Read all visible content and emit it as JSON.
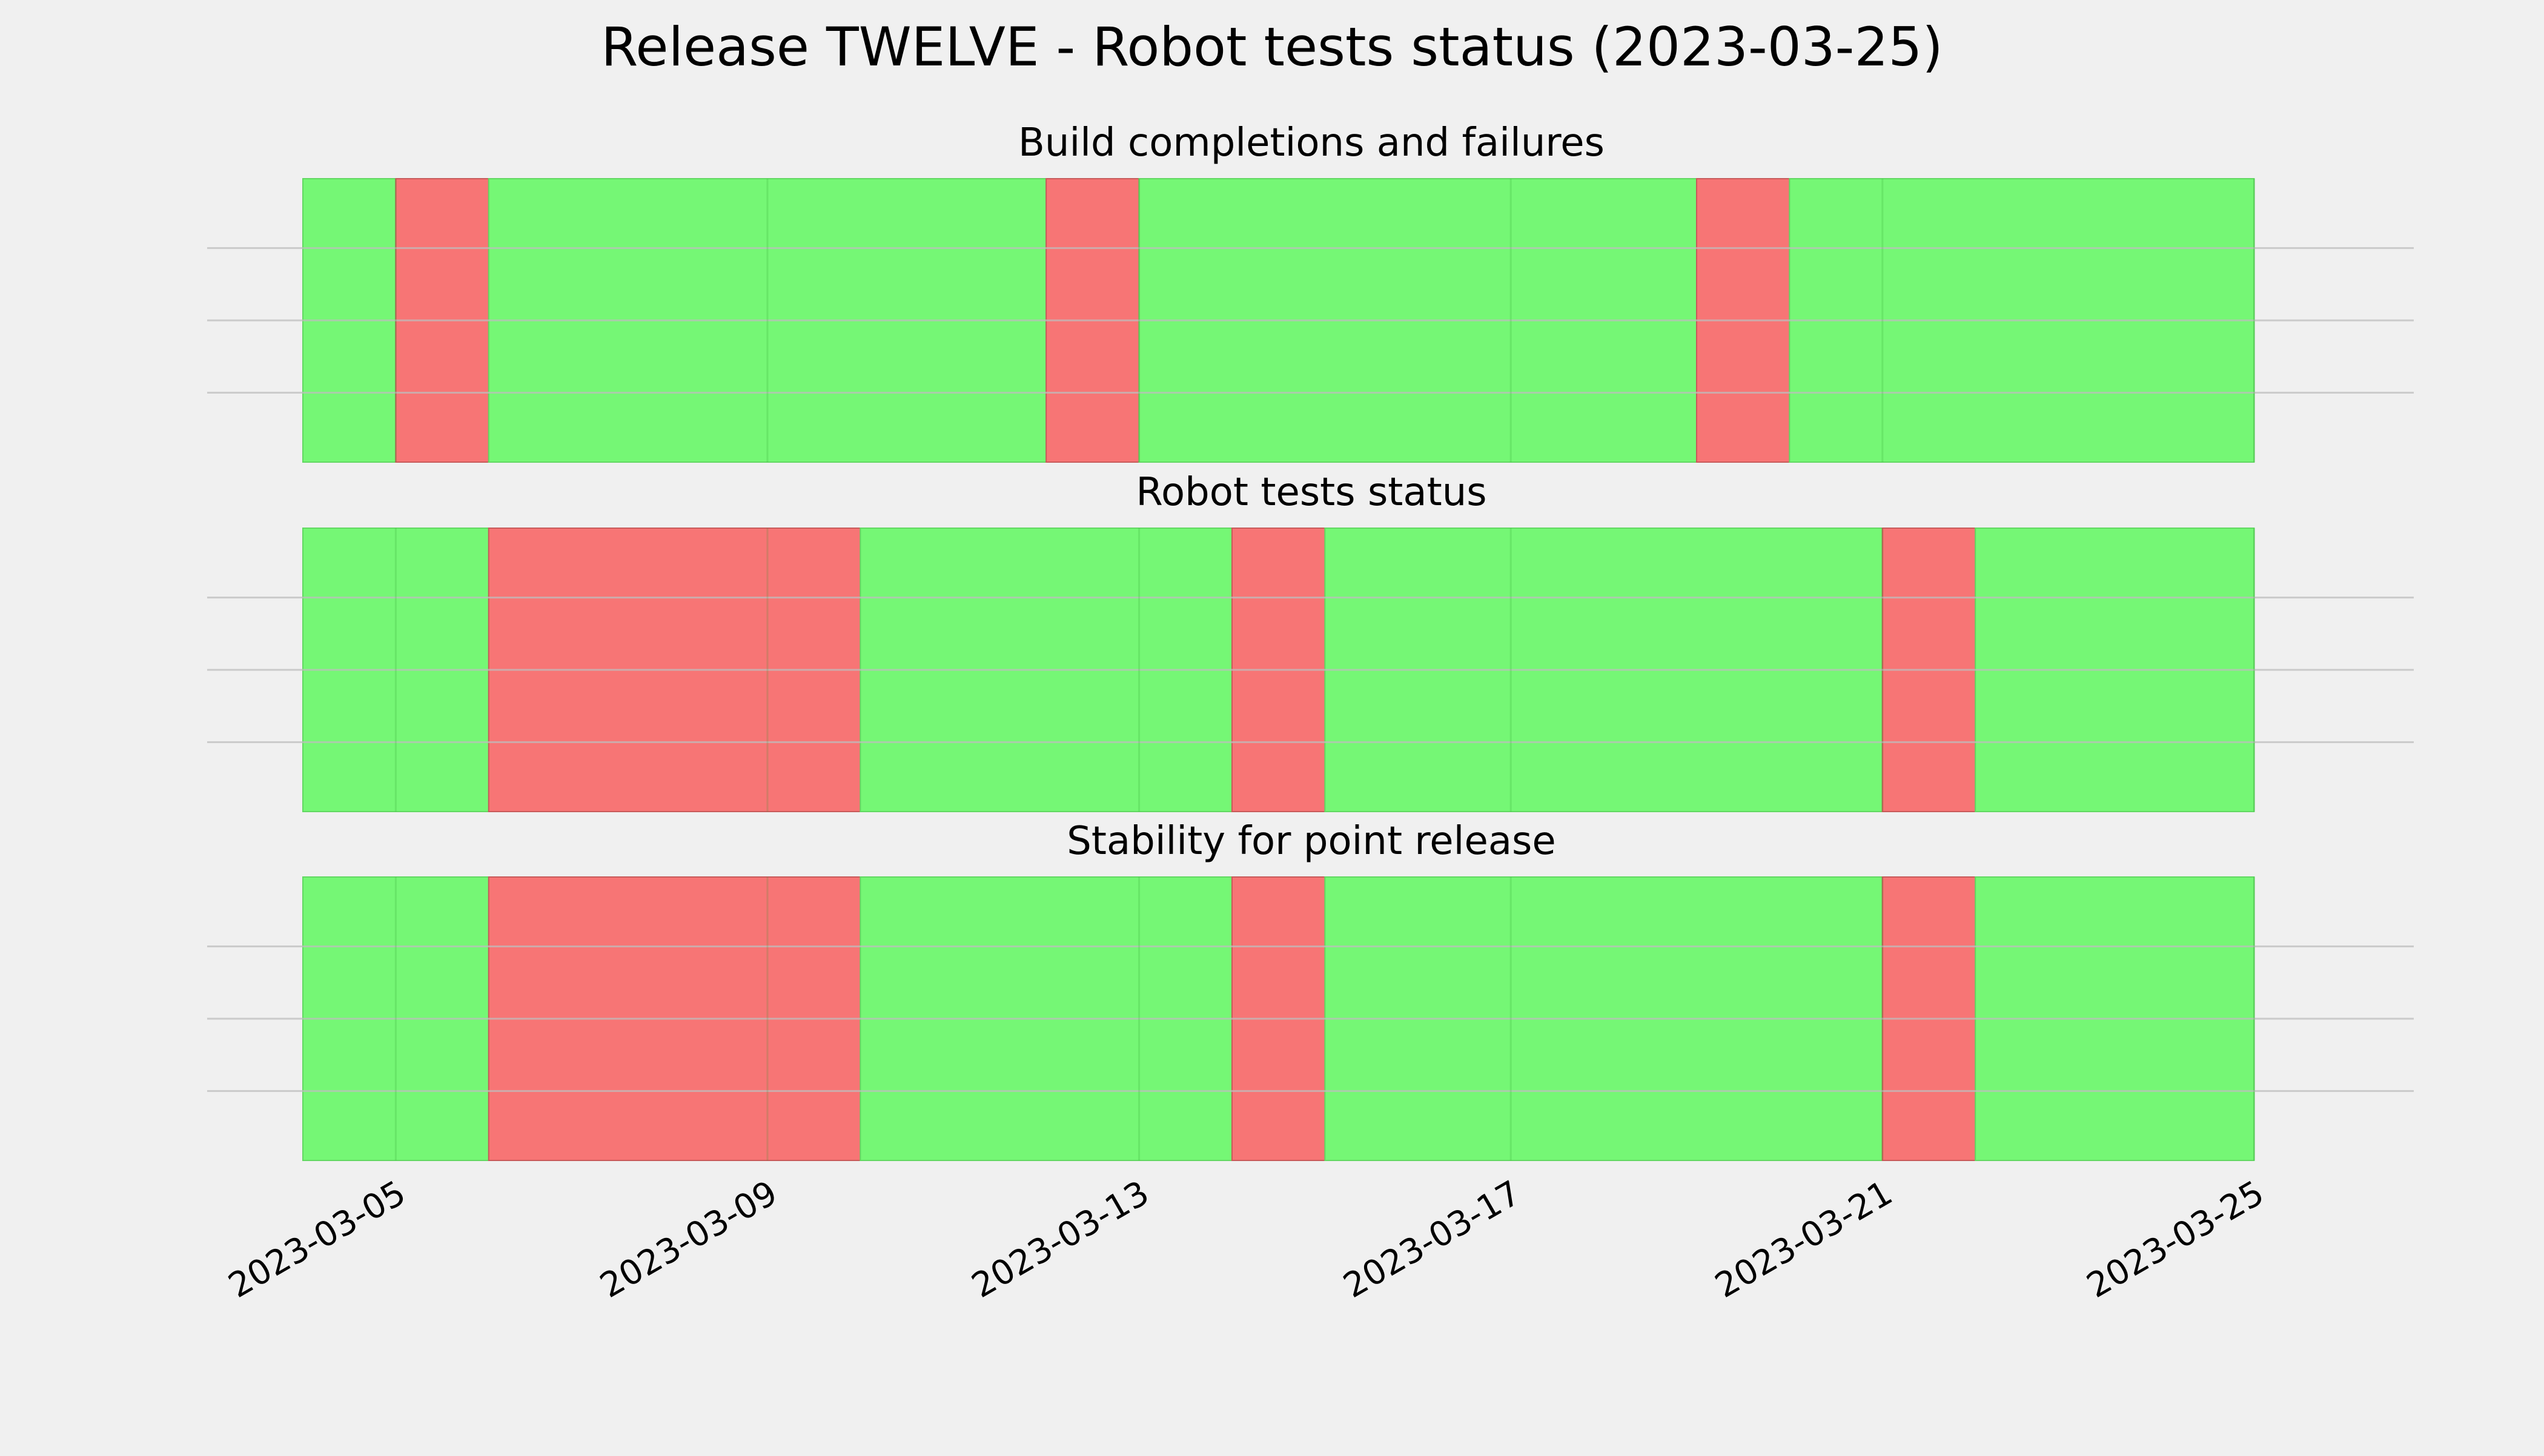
{
  "page_title": "Release TWELVE - Robot tests status (2023-03-25)",
  "colors": {
    "background": "#f0f0f0",
    "pass": "#75f775",
    "fail": "#f77575",
    "grid": "#cccccc"
  },
  "chart_data": {
    "type": "timeline",
    "x_axis": {
      "range": [
        "2023-03-04",
        "2023-03-25"
      ],
      "ticks": [
        "2023-03-05",
        "2023-03-09",
        "2023-03-13",
        "2023-03-17",
        "2023-03-21",
        "2023-03-25"
      ]
    },
    "grid": true,
    "panels": [
      {
        "title": "Build completions and failures",
        "segments": [
          {
            "start": "2023-03-04",
            "end": "2023-03-05",
            "status": "pass"
          },
          {
            "start": "2023-03-05",
            "end": "2023-03-06",
            "status": "fail"
          },
          {
            "start": "2023-03-06",
            "end": "2023-03-12",
            "status": "pass"
          },
          {
            "start": "2023-03-12",
            "end": "2023-03-13",
            "status": "fail"
          },
          {
            "start": "2023-03-13",
            "end": "2023-03-19",
            "status": "pass"
          },
          {
            "start": "2023-03-19",
            "end": "2023-03-20",
            "status": "fail"
          },
          {
            "start": "2023-03-20",
            "end": "2023-03-25",
            "status": "pass"
          }
        ]
      },
      {
        "title": "Robot tests status",
        "segments": [
          {
            "start": "2023-03-04",
            "end": "2023-03-06",
            "status": "pass"
          },
          {
            "start": "2023-03-06",
            "end": "2023-03-10",
            "status": "fail"
          },
          {
            "start": "2023-03-10",
            "end": "2023-03-14",
            "status": "pass"
          },
          {
            "start": "2023-03-14",
            "end": "2023-03-15",
            "status": "fail"
          },
          {
            "start": "2023-03-15",
            "end": "2023-03-21",
            "status": "pass"
          },
          {
            "start": "2023-03-21",
            "end": "2023-03-22",
            "status": "fail"
          },
          {
            "start": "2023-03-22",
            "end": "2023-03-25",
            "status": "pass"
          }
        ]
      },
      {
        "title": "Stability for point release",
        "segments": [
          {
            "start": "2023-03-04",
            "end": "2023-03-06",
            "status": "pass"
          },
          {
            "start": "2023-03-06",
            "end": "2023-03-10",
            "status": "fail"
          },
          {
            "start": "2023-03-10",
            "end": "2023-03-14",
            "status": "pass"
          },
          {
            "start": "2023-03-14",
            "end": "2023-03-15",
            "status": "fail"
          },
          {
            "start": "2023-03-15",
            "end": "2023-03-21",
            "status": "pass"
          },
          {
            "start": "2023-03-21",
            "end": "2023-03-22",
            "status": "fail"
          },
          {
            "start": "2023-03-22",
            "end": "2023-03-25",
            "status": "pass"
          }
        ]
      }
    ]
  }
}
